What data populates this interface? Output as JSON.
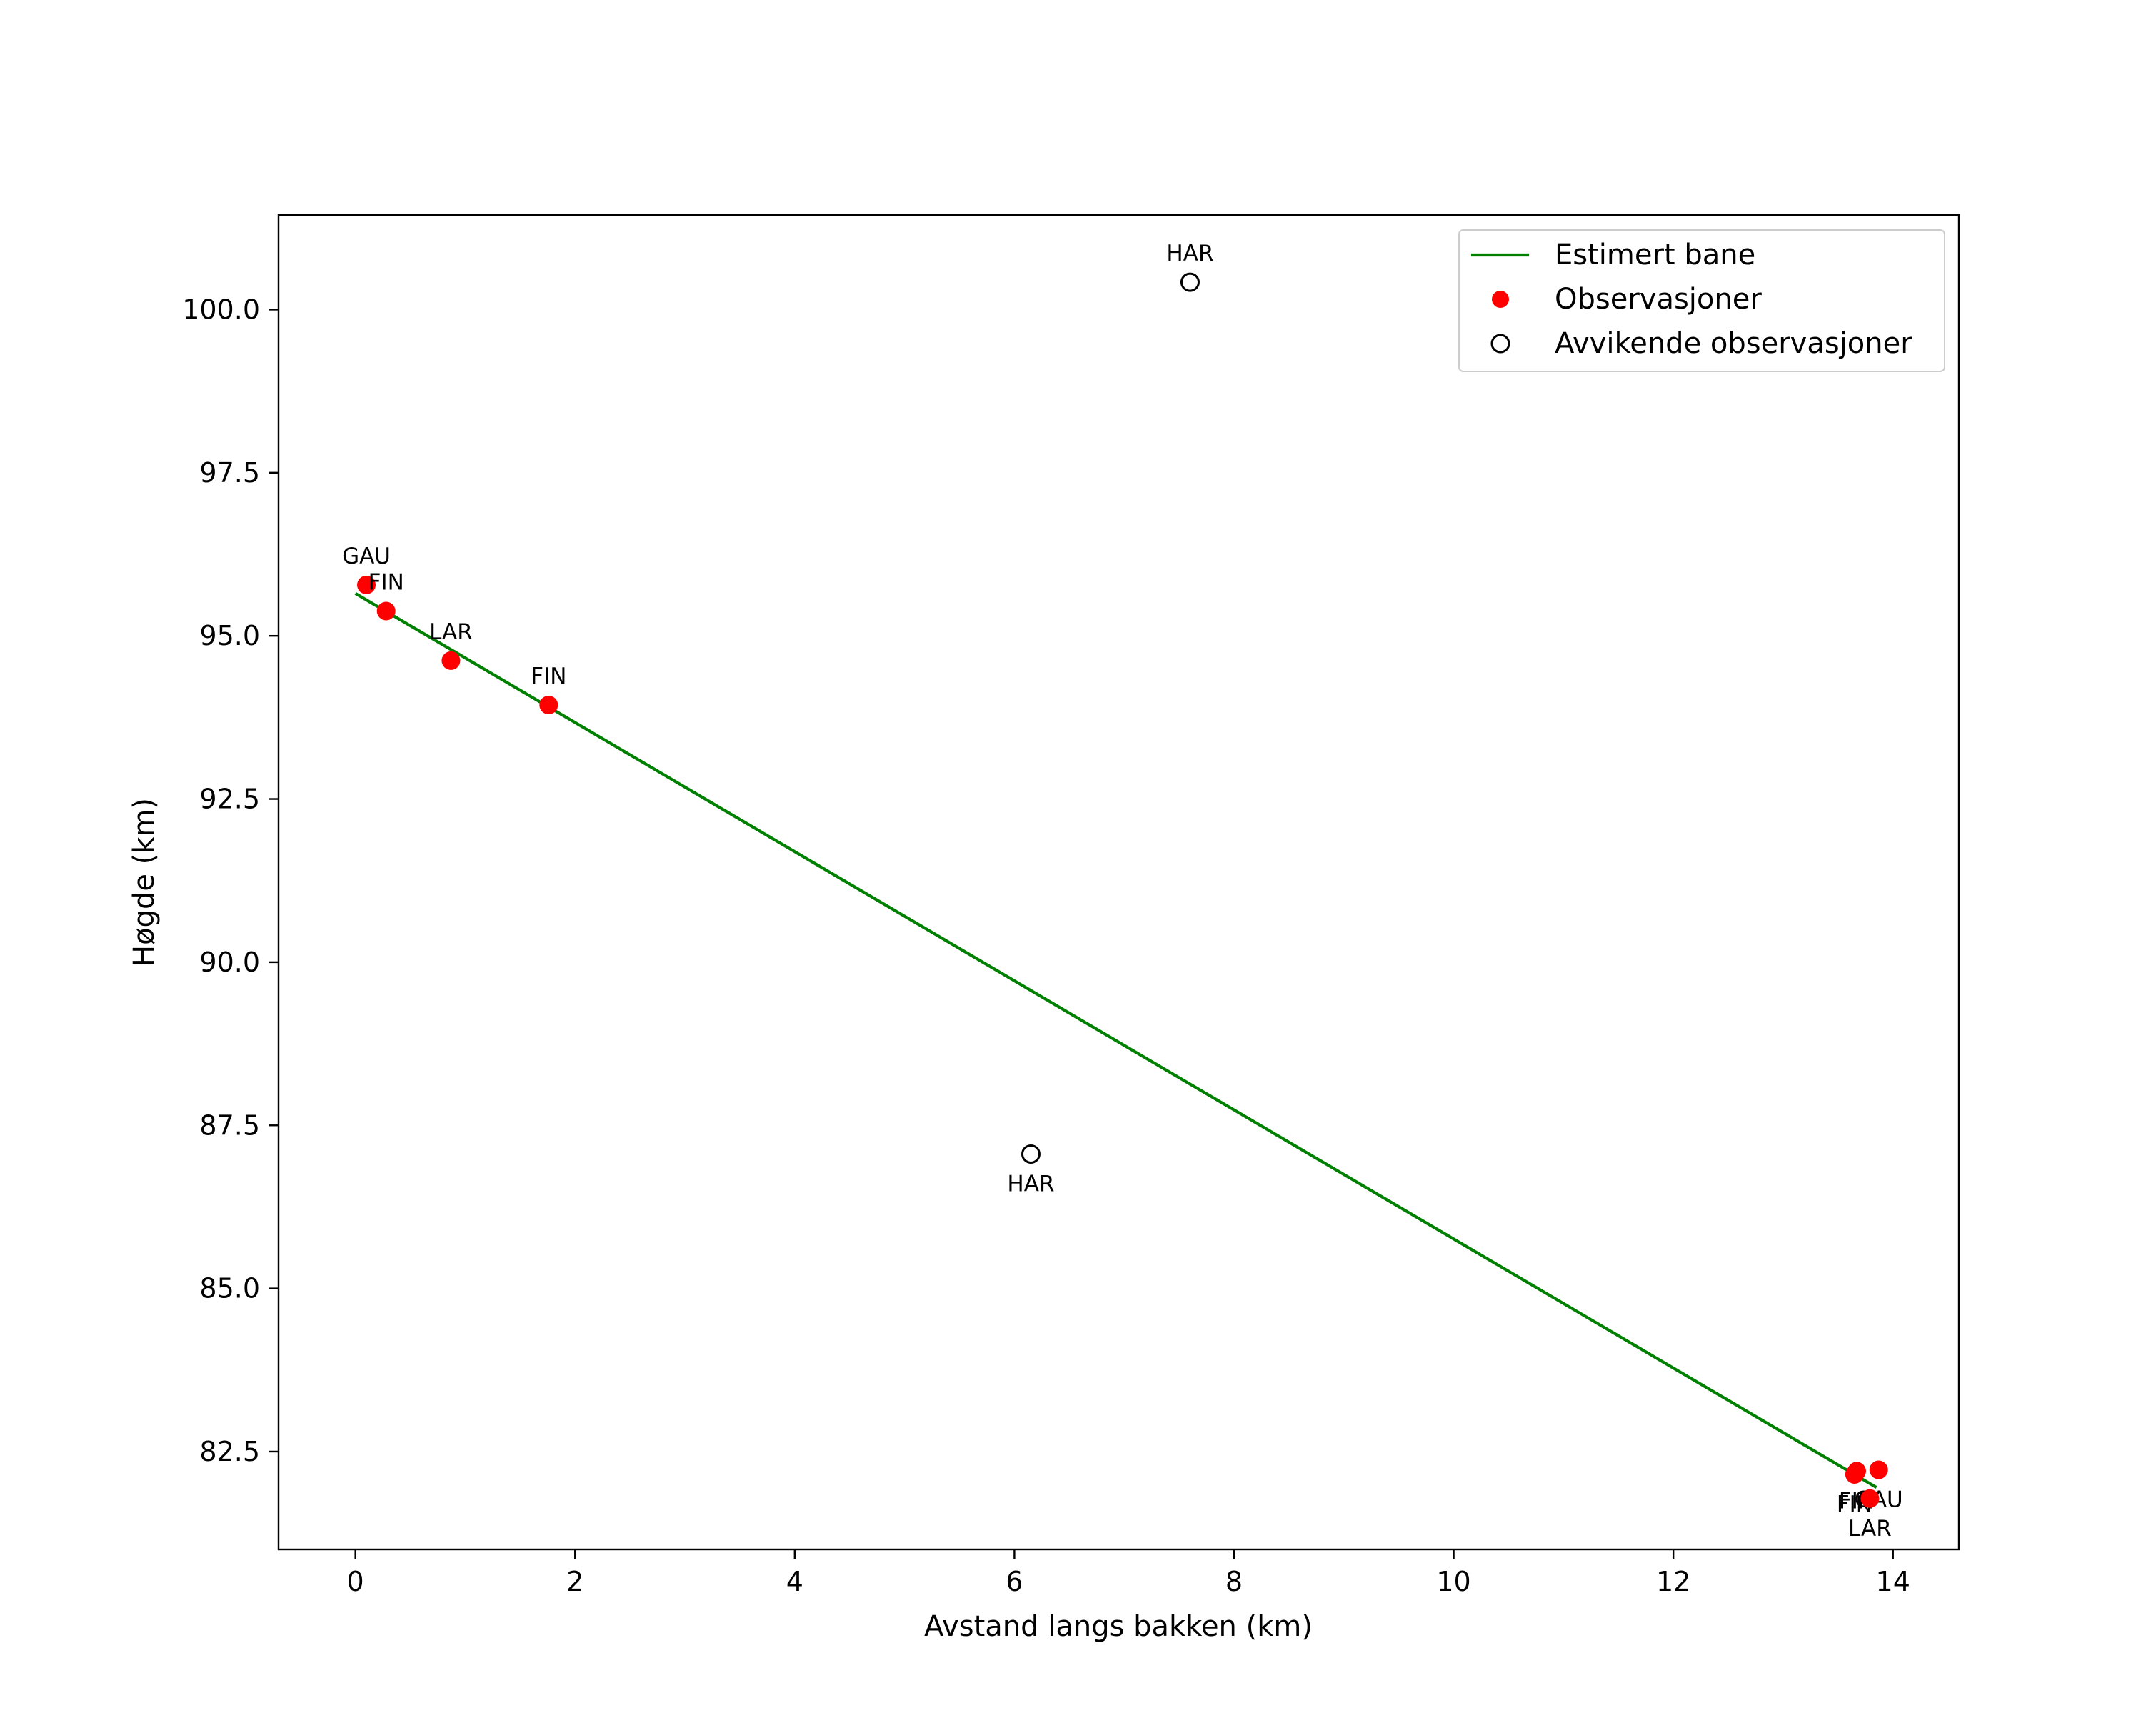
{
  "chart_data": {
    "type": "scatter",
    "title": "",
    "xlabel": "Avstand langs bakken (km)",
    "ylabel": "Høgde (km)",
    "xlim": [
      -0.7,
      14.6
    ],
    "ylim": [
      81.0,
      101.45
    ],
    "xticks": [
      0,
      2,
      4,
      6,
      8,
      10,
      12,
      14
    ],
    "xtick_labels": [
      "0",
      "2",
      "4",
      "6",
      "8",
      "10",
      "12",
      "14"
    ],
    "yticks": [
      82.5,
      85.0,
      87.5,
      90.0,
      92.5,
      95.0,
      97.5,
      100.0
    ],
    "ytick_labels": [
      "82.5",
      "85.0",
      "87.5",
      "90.0",
      "92.5",
      "95.0",
      "97.5",
      "100.0"
    ],
    "grid": false,
    "legend_position": "top-right",
    "series": [
      {
        "name": "Estimert bane",
        "kind": "line",
        "color": "#008000",
        "points": [
          [
            0.0,
            95.65
          ],
          [
            13.85,
            81.95
          ]
        ]
      },
      {
        "name": "Observasjoner",
        "kind": "scatter",
        "color": "#ff0000",
        "points": [
          {
            "x": 0.1,
            "y": 95.78,
            "label": "GAU",
            "label_pos": "above"
          },
          {
            "x": 0.28,
            "y": 95.38,
            "label": "FIN",
            "label_pos": "above"
          },
          {
            "x": 0.87,
            "y": 94.62,
            "label": "LAR",
            "label_pos": "above"
          },
          {
            "x": 1.76,
            "y": 93.94,
            "label": "FIN",
            "label_pos": "above"
          },
          {
            "x": 13.65,
            "y": 82.15,
            "label": "FIN",
            "label_pos": "below"
          },
          {
            "x": 13.67,
            "y": 82.2,
            "label": "FIN",
            "label_pos": "below"
          },
          {
            "x": 13.87,
            "y": 82.22,
            "label": "GAU",
            "label_pos": "below"
          },
          {
            "x": 13.79,
            "y": 81.78,
            "label": "LAR",
            "label_pos": "below"
          }
        ]
      },
      {
        "name": "Avvikende observasjoner",
        "kind": "scatter-outlier",
        "color": "#000000",
        "points": [
          {
            "x": 7.6,
            "y": 100.42,
            "label": "HAR",
            "label_pos": "above"
          },
          {
            "x": 6.15,
            "y": 87.06,
            "label": "HAR",
            "label_pos": "below"
          }
        ]
      }
    ]
  }
}
